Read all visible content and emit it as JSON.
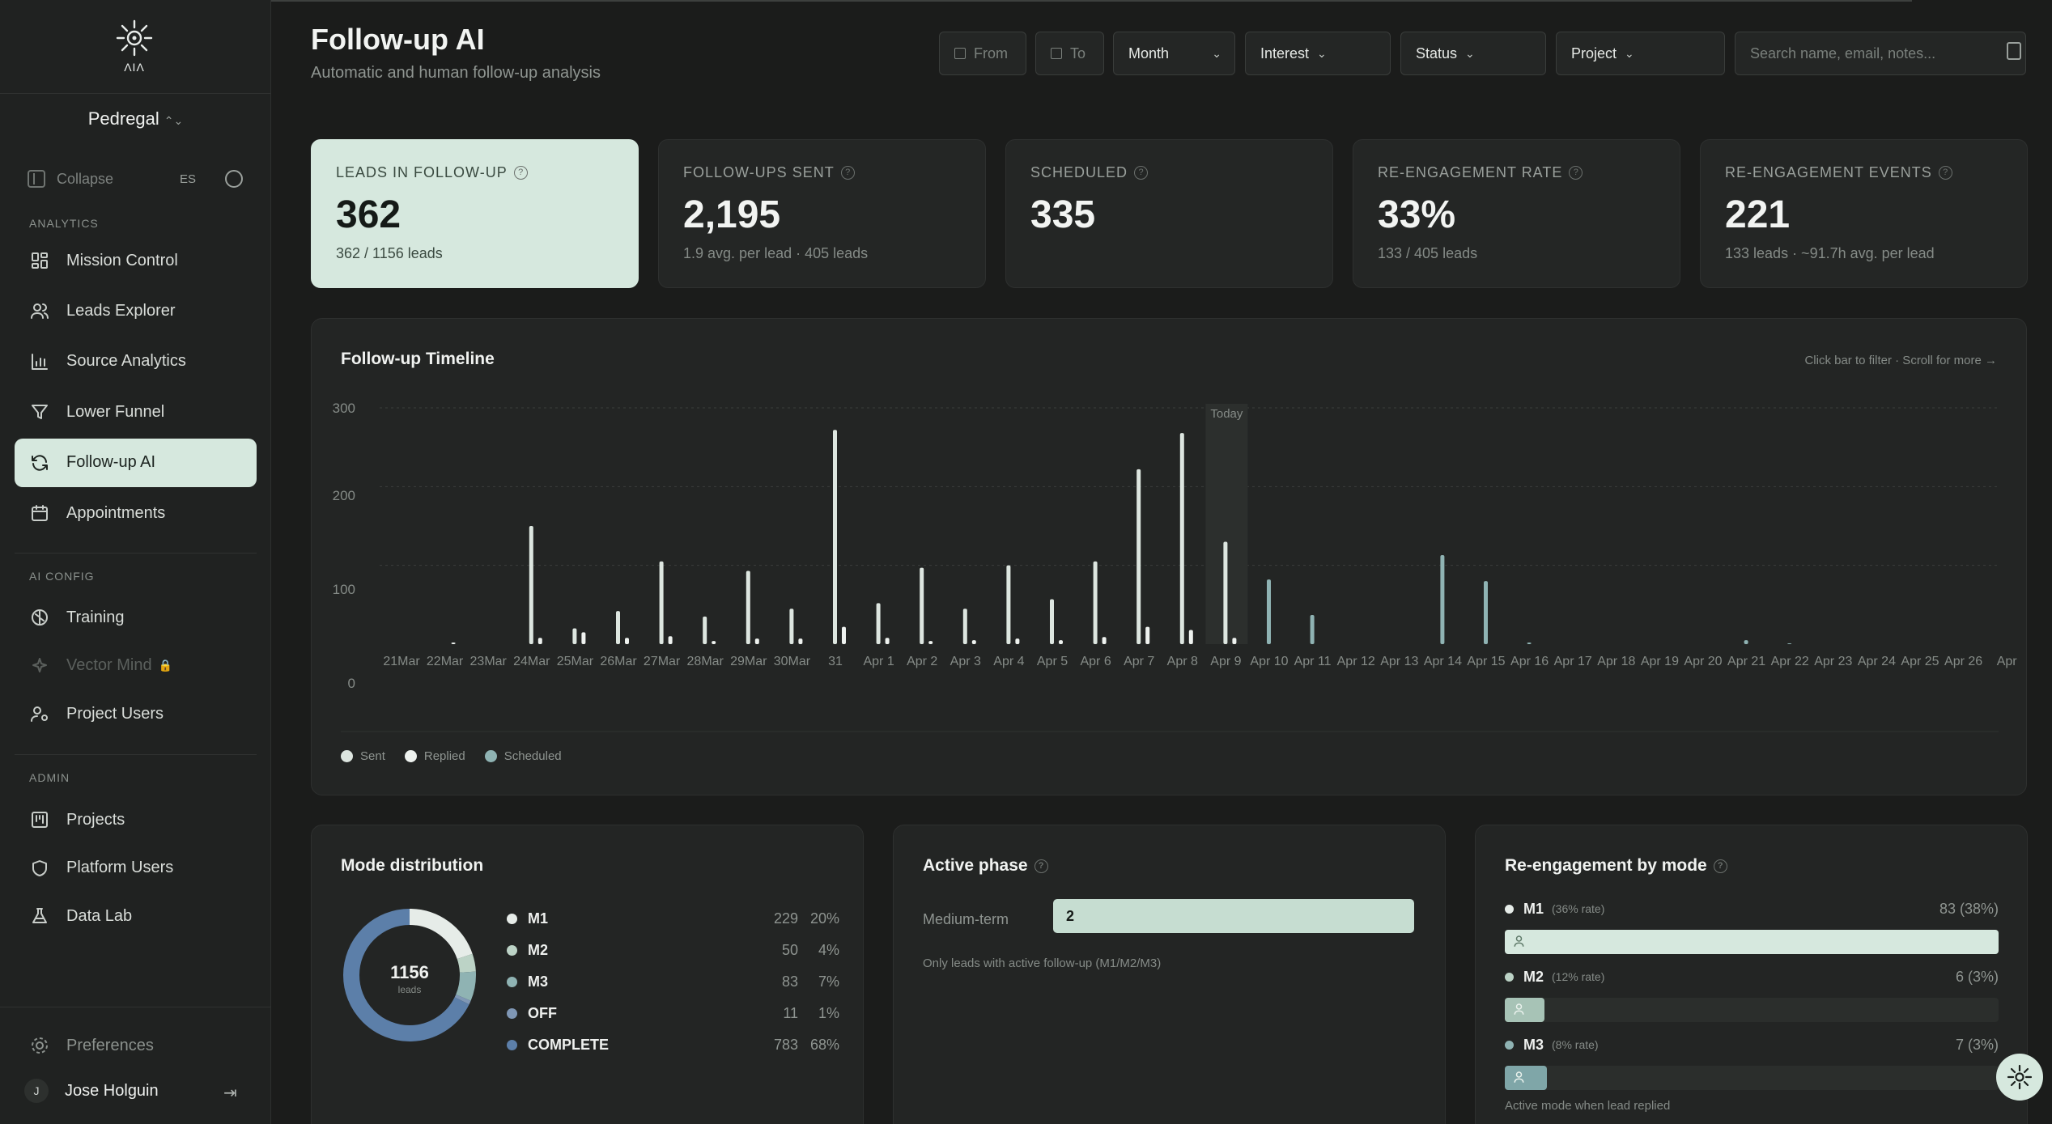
{
  "sidebar": {
    "org": "Pedregal",
    "collapse": "Collapse",
    "lang": "ES",
    "sections": {
      "analytics": "ANALYTICS",
      "ai_config": "AI CONFIG",
      "admin": "ADMIN"
    },
    "analytics_items": [
      {
        "label": "Mission Control",
        "icon": "grid-icon"
      },
      {
        "label": "Leads Explorer",
        "icon": "users-icon"
      },
      {
        "label": "Source Analytics",
        "icon": "bar-chart-icon"
      },
      {
        "label": "Lower Funnel",
        "icon": "filter-icon"
      },
      {
        "label": "Follow-up AI",
        "icon": "refresh-icon",
        "active": true
      },
      {
        "label": "Appointments",
        "icon": "calendar-icon"
      }
    ],
    "config_items": [
      {
        "label": "Training",
        "icon": "brain-icon"
      },
      {
        "label": "Vector Mind",
        "icon": "sparkle-icon",
        "disabled": true
      },
      {
        "label": "Project Users",
        "icon": "user-gear-icon"
      }
    ],
    "admin_items": [
      {
        "label": "Projects",
        "icon": "kanban-icon"
      },
      {
        "label": "Platform Users",
        "icon": "shield-icon"
      },
      {
        "label": "Data Lab",
        "icon": "flask-icon"
      }
    ],
    "preferences": "Preferences",
    "user": {
      "initial": "J",
      "name": "Jose Holguin"
    }
  },
  "header": {
    "title": "Follow-up AI",
    "subtitle": "Automatic and human follow-up analysis",
    "filters": {
      "from": "From",
      "to": "To",
      "period": "Month",
      "interest": "Interest",
      "status": "Status",
      "project": "Project"
    },
    "search_placeholder": "Search name, email, notes..."
  },
  "kpis": [
    {
      "label": "LEADS IN FOLLOW-UP",
      "value": "362",
      "sub": "362 / 1156 leads"
    },
    {
      "label": "FOLLOW-UPS SENT",
      "value": "2,195",
      "sub": "1.9 avg. per lead · 405 leads"
    },
    {
      "label": "SCHEDULED",
      "value": "335",
      "sub": ""
    },
    {
      "label": "RE-ENGAGEMENT RATE",
      "value": "33%",
      "sub": "133 / 405 leads"
    },
    {
      "label": "RE-ENGAGEMENT EVENTS",
      "value": "221",
      "sub": "133 leads · ~91.7h avg. per lead"
    }
  ],
  "timeline": {
    "title": "Follow-up Timeline",
    "hint": "Click bar to filter · Scroll for more →",
    "today_label": "Today",
    "colors": {
      "sent": "#dde6e0",
      "replied": "#eef2ef",
      "scheduled": "#8fb3b3"
    }
  },
  "chart_data": {
    "type": "bar",
    "categories": [
      "21Mar",
      "22Mar",
      "23Mar",
      "24Mar",
      "25Mar",
      "26Mar",
      "27Mar",
      "28Mar",
      "29Mar",
      "30Mar",
      "31",
      "Apr 1",
      "Apr 2",
      "Apr 3",
      "Apr 4",
      "Apr 5",
      "Apr 6",
      "Apr 7",
      "Apr 8",
      "Apr 9",
      "Apr 10",
      "Apr 11",
      "Apr 12",
      "Apr 13",
      "Apr 14",
      "Apr 15",
      "Apr 16",
      "Apr 17",
      "Apr 18",
      "Apr 19",
      "Apr 20",
      "Apr 21",
      "Apr 22",
      "Apr 23",
      "Apr 24",
      "Apr 25",
      "Apr 26",
      "Apr"
    ],
    "series": [
      {
        "name": "Sent",
        "values": [
          0,
          0,
          0,
          150,
          20,
          42,
          105,
          35,
          93,
          45,
          272,
          52,
          97,
          45,
          100,
          57,
          105,
          222,
          268,
          130,
          0,
          0,
          0,
          0,
          0,
          0,
          0,
          0,
          0,
          0,
          0,
          0,
          0,
          0,
          0,
          0,
          0,
          0
        ]
      },
      {
        "name": "Replied",
        "values": [
          0,
          2,
          0,
          8,
          15,
          8,
          10,
          4,
          7,
          7,
          22,
          8,
          4,
          5,
          7,
          5,
          9,
          22,
          18,
          8,
          0,
          0,
          0,
          0,
          0,
          0,
          0,
          0,
          0,
          0,
          0,
          0,
          0,
          0,
          0,
          0,
          0,
          0
        ]
      },
      {
        "name": "Scheduled",
        "values": [
          0,
          0,
          0,
          0,
          0,
          0,
          0,
          0,
          0,
          0,
          0,
          0,
          0,
          0,
          0,
          0,
          0,
          0,
          0,
          0,
          82,
          37,
          0,
          0,
          113,
          80,
          2,
          0,
          0,
          0,
          0,
          5,
          1,
          0,
          0,
          0,
          0,
          0
        ]
      }
    ],
    "today_index": 19,
    "y_ticks": [
      "300",
      "200",
      "100",
      "0"
    ],
    "ylim": [
      0,
      300
    ],
    "grid": true,
    "legend": "bottom-left"
  },
  "mode_distribution": {
    "title": "Mode distribution",
    "total": "1156",
    "total_label": "leads",
    "items": [
      {
        "name": "M1",
        "count": "229",
        "pct": "20%",
        "color": "#e6ece8",
        "value": 229
      },
      {
        "name": "M2",
        "count": "50",
        "pct": "4%",
        "color": "#bcd3c6",
        "value": 50
      },
      {
        "name": "M3",
        "count": "83",
        "pct": "7%",
        "color": "#8fb3b3",
        "value": 83
      },
      {
        "name": "OFF",
        "count": "11",
        "pct": "1%",
        "color": "#7f97b5",
        "value": 11
      },
      {
        "name": "COMPLETE",
        "count": "783",
        "pct": "68%",
        "color": "#5c7fa9",
        "value": 783
      }
    ]
  },
  "active_phase": {
    "title": "Active phase",
    "label": "Medium-term",
    "value": "2",
    "fraction": 1.0,
    "note": "Only leads with active follow-up (M1/M2/M3)"
  },
  "reengagement": {
    "title": "Re-engagement by mode",
    "note": "Active mode when lead replied",
    "items": [
      {
        "name": "M1",
        "rate": "(36% rate)",
        "value": "83 (38%)",
        "fraction": 1.0,
        "color": "#d6e8de",
        "dot": "#e6ece8"
      },
      {
        "name": "M2",
        "rate": "(12% rate)",
        "value": "6 (3%)",
        "fraction": 0.08,
        "color": "#a7c3b6",
        "dot": "#bcd3c6"
      },
      {
        "name": "M3",
        "rate": "(8% rate)",
        "value": "7 (3%)",
        "fraction": 0.085,
        "color": "#7fa6a8",
        "dot": "#8fb3b3"
      }
    ]
  }
}
